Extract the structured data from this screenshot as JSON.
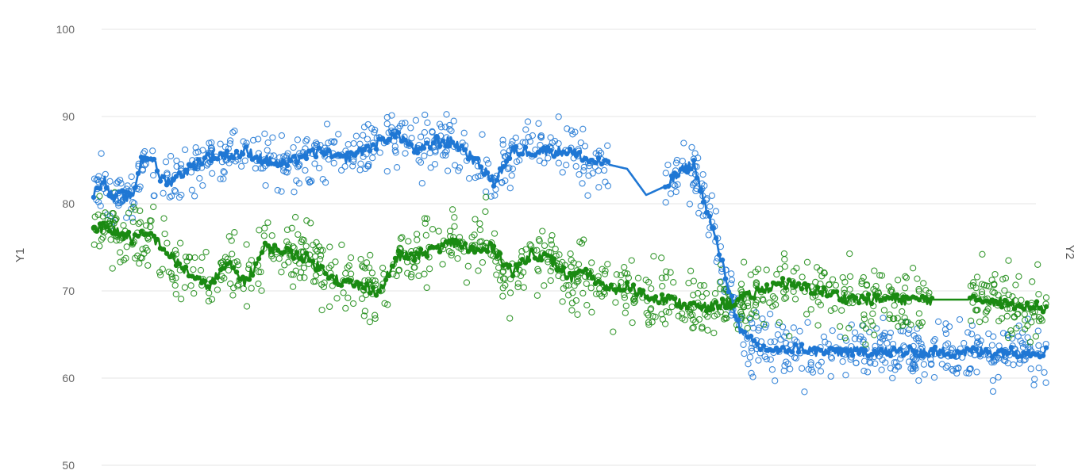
{
  "chart_data": {
    "type": "scatter",
    "ylabel_left": "Y1",
    "ylabel_right": "Y2",
    "ylim": [
      50,
      100
    ],
    "yticks": [
      50,
      60,
      70,
      80,
      90,
      100
    ],
    "xlim": [
      0,
      100
    ],
    "grid": true,
    "legend": "none",
    "series": [
      {
        "color": "#1f77d4",
        "x": [
          0,
          1,
          2,
          3,
          4,
          5,
          6,
          7,
          8,
          10,
          12,
          14,
          16,
          18,
          20,
          22,
          24,
          26,
          28,
          30,
          32,
          34,
          36,
          38,
          40,
          42,
          44,
          46,
          48,
          50,
          52,
          54,
          56,
          58,
          60,
          62,
          63,
          65,
          68,
          70,
          72,
          74,
          76,
          78,
          80,
          82,
          84,
          86,
          88,
          90,
          92,
          94,
          95,
          96,
          97,
          98,
          99,
          100
        ],
        "trend": [
          81,
          83,
          80.5,
          81,
          80.5,
          85,
          85.5,
          83,
          82.5,
          84,
          85.5,
          85.5,
          86,
          85,
          84.5,
          85.5,
          86,
          85,
          86,
          87,
          88,
          86,
          87.2,
          87,
          85,
          82.5,
          86,
          86,
          86,
          86,
          85,
          84.5,
          84,
          81,
          82,
          84,
          84.5,
          77,
          65,
          63.5,
          63,
          63.5,
          63,
          63,
          63,
          63,
          63,
          63,
          63,
          63,
          63,
          63,
          63,
          63,
          63,
          63,
          63,
          63
        ]
      },
      {
        "color": "#1a8a12",
        "x": [
          0,
          2,
          4,
          6,
          8,
          10,
          12,
          14,
          16,
          18,
          20,
          22,
          24,
          26,
          28,
          30,
          32,
          34,
          36,
          38,
          40,
          42,
          44,
          46,
          48,
          50,
          52,
          54,
          56,
          58,
          60,
          62,
          64,
          66,
          68,
          70,
          72,
          74,
          76,
          78,
          80,
          82,
          84,
          86,
          88,
          90,
          92,
          94,
          96,
          98,
          100
        ],
        "trend": [
          77.5,
          77,
          76,
          76.5,
          74,
          72,
          70.5,
          73,
          71,
          75,
          74.5,
          74,
          72.5,
          71,
          70.5,
          70,
          74,
          74,
          75,
          75.5,
          74.5,
          75,
          72,
          74.5,
          73.5,
          71.5,
          72,
          70,
          70.5,
          69.5,
          69,
          68.5,
          68,
          68.5,
          69,
          70,
          71,
          70.5,
          70,
          69.5,
          69,
          69,
          69,
          69,
          69,
          69,
          69,
          69,
          68.5,
          68.5,
          68
        ]
      }
    ]
  }
}
